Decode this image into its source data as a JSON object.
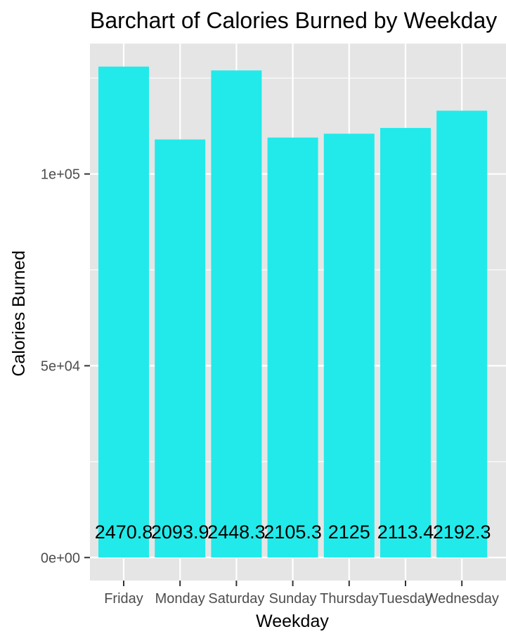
{
  "chart_data": {
    "type": "bar",
    "title": "Barchart of Calories Burned by Weekday",
    "xlabel": "Weekday",
    "ylabel": "Calories Burned",
    "categories": [
      "Friday",
      "Monday",
      "Saturday",
      "Sunday",
      "Thursday",
      "Tuesday",
      "Wednesday"
    ],
    "values": [
      128000,
      109000,
      127000,
      109500,
      110500,
      112000,
      116500
    ],
    "data_labels": [
      "2470.8",
      "2093.9",
      "2448.3",
      "2105.3",
      "2125",
      "2113.4",
      "2192.3"
    ],
    "y_ticks": [
      {
        "value": 0,
        "label": "0e+00"
      },
      {
        "value": 50000,
        "label": "5e+04"
      },
      {
        "value": 100000,
        "label": "1e+05"
      }
    ],
    "ylim": [
      -6000,
      134000
    ],
    "grid": true,
    "colors": {
      "bar": "#22EAEA",
      "panel": "#E5E5E5",
      "grid": "#FFFFFF",
      "tick_text": "#4D4D4D"
    }
  }
}
